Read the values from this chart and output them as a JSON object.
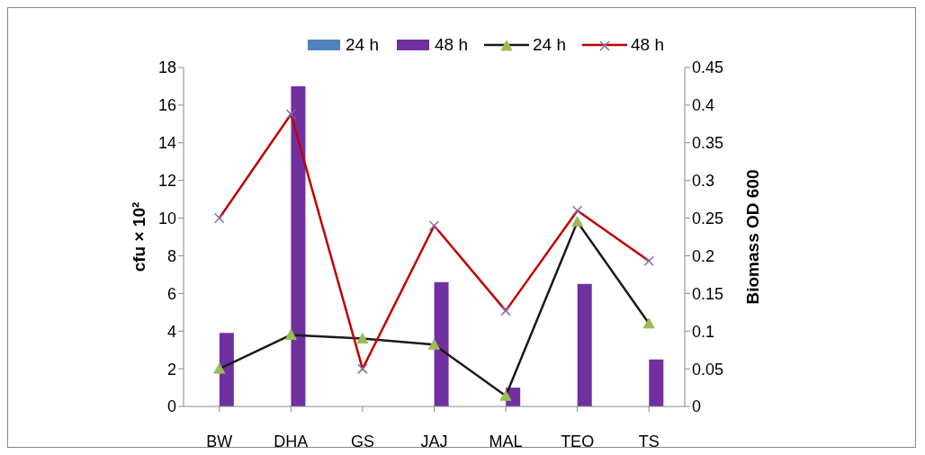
{
  "chart_data": {
    "type": "bar",
    "categories": [
      "BW",
      "DHA",
      "GS",
      "JAJ",
      "MAL",
      "TEO",
      "TS"
    ],
    "ylabel": "cfu × 10²",
    "y2label": "Biomass OD 600",
    "ylim": [
      0,
      18
    ],
    "yticks": [
      0,
      2,
      4,
      6,
      8,
      10,
      12,
      14,
      16,
      18
    ],
    "y2lim": [
      0,
      0.45
    ],
    "y2ticks": [
      0,
      0.05,
      0.1,
      0.15,
      0.2,
      0.25,
      0.3,
      0.35,
      0.4,
      0.45
    ],
    "grid": false,
    "legend": "top",
    "series": [
      {
        "name": "24 h",
        "color": "#4f81bd",
        "values": [
          0,
          0,
          0,
          0,
          0,
          0,
          0
        ]
      },
      {
        "name": "48 h",
        "color": "#7030a0",
        "values": [
          3.9,
          17,
          0,
          6.6,
          1,
          6.5,
          2.5
        ]
      },
      {
        "name": "24 h",
        "type": "line",
        "axis": "y2",
        "color": "#1a1a1a",
        "marker": "triangle",
        "values": [
          0.05,
          0.095,
          0.09,
          0.082,
          0.014,
          0.245,
          0.11
        ]
      },
      {
        "name": "48 h",
        "type": "line",
        "axis": "y2",
        "color": "#c00000",
        "marker": "cross",
        "values": [
          0.25,
          0.388,
          0.05,
          0.24,
          0.127,
          0.26,
          0.193
        ]
      }
    ]
  }
}
